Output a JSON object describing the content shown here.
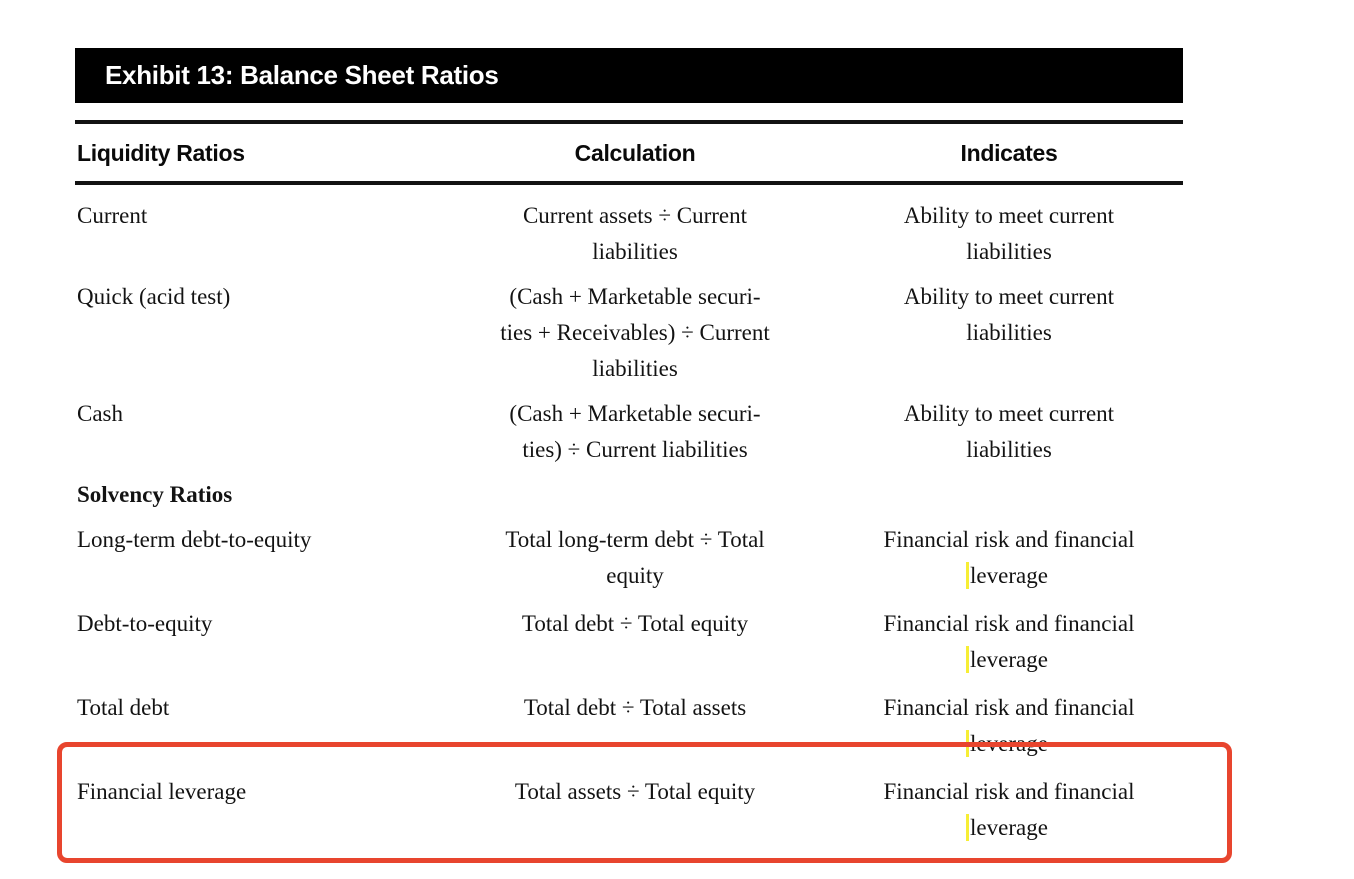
{
  "exhibit": {
    "title": "Exhibit 13: Balance Sheet Ratios",
    "title_bar_bg": "#000000",
    "title_color": "#ffffff"
  },
  "table": {
    "headers": [
      "Liquidity Ratios",
      "Calculation",
      "Indicates"
    ],
    "liquidity_rows": [
      {
        "ratio": "Current",
        "calculation_lines": [
          "Current assets ÷ Current",
          "liabilities"
        ],
        "indicates_lines": [
          "Ability to meet current",
          "liabilities"
        ]
      },
      {
        "ratio": "Quick (acid test)",
        "calculation_lines": [
          "(Cash + Marketable securi-",
          "ties + Receivables) ÷ Current",
          "liabilities"
        ],
        "indicates_lines": [
          "Ability to meet current",
          "liabilities"
        ]
      },
      {
        "ratio": "Cash",
        "calculation_lines": [
          "(Cash + Marketable securi-",
          "ties) ÷ Current liabilities"
        ],
        "indicates_lines": [
          "Ability to meet current",
          "liabilities"
        ]
      }
    ],
    "solvency_label": "Solvency Ratios",
    "solvency_rows": [
      {
        "ratio": "Long-term debt-to-equity",
        "calculation_lines": [
          "Total long-term debt ÷ Total",
          "equity"
        ],
        "indicates_lines": [
          "Financial risk and financial",
          "leverage"
        ],
        "leverage_highlight_tick": true
      },
      {
        "ratio": "Debt-to-equity",
        "calculation_lines": [
          "Total debt ÷ Total equity"
        ],
        "indicates_lines": [
          "Financial risk and financial",
          "leverage"
        ],
        "leverage_highlight_tick": true
      },
      {
        "ratio": "Total debt",
        "calculation_lines": [
          "Total debt ÷ Total assets"
        ],
        "indicates_lines": [
          "Financial risk and financial",
          "leverage"
        ],
        "leverage_highlight_tick": true
      },
      {
        "ratio": "Financial leverage",
        "calculation_lines": [
          "Total assets ÷ Total equity"
        ],
        "indicates_lines": [
          "Financial risk and financial",
          "leverage"
        ],
        "leverage_highlight_tick": true
      }
    ]
  },
  "annotation": {
    "shape": "rounded-rectangle",
    "color": "#e8452e",
    "highlights_row": "Financial leverage"
  },
  "marks": {
    "yellow_tick_color": "#f7ee35"
  }
}
